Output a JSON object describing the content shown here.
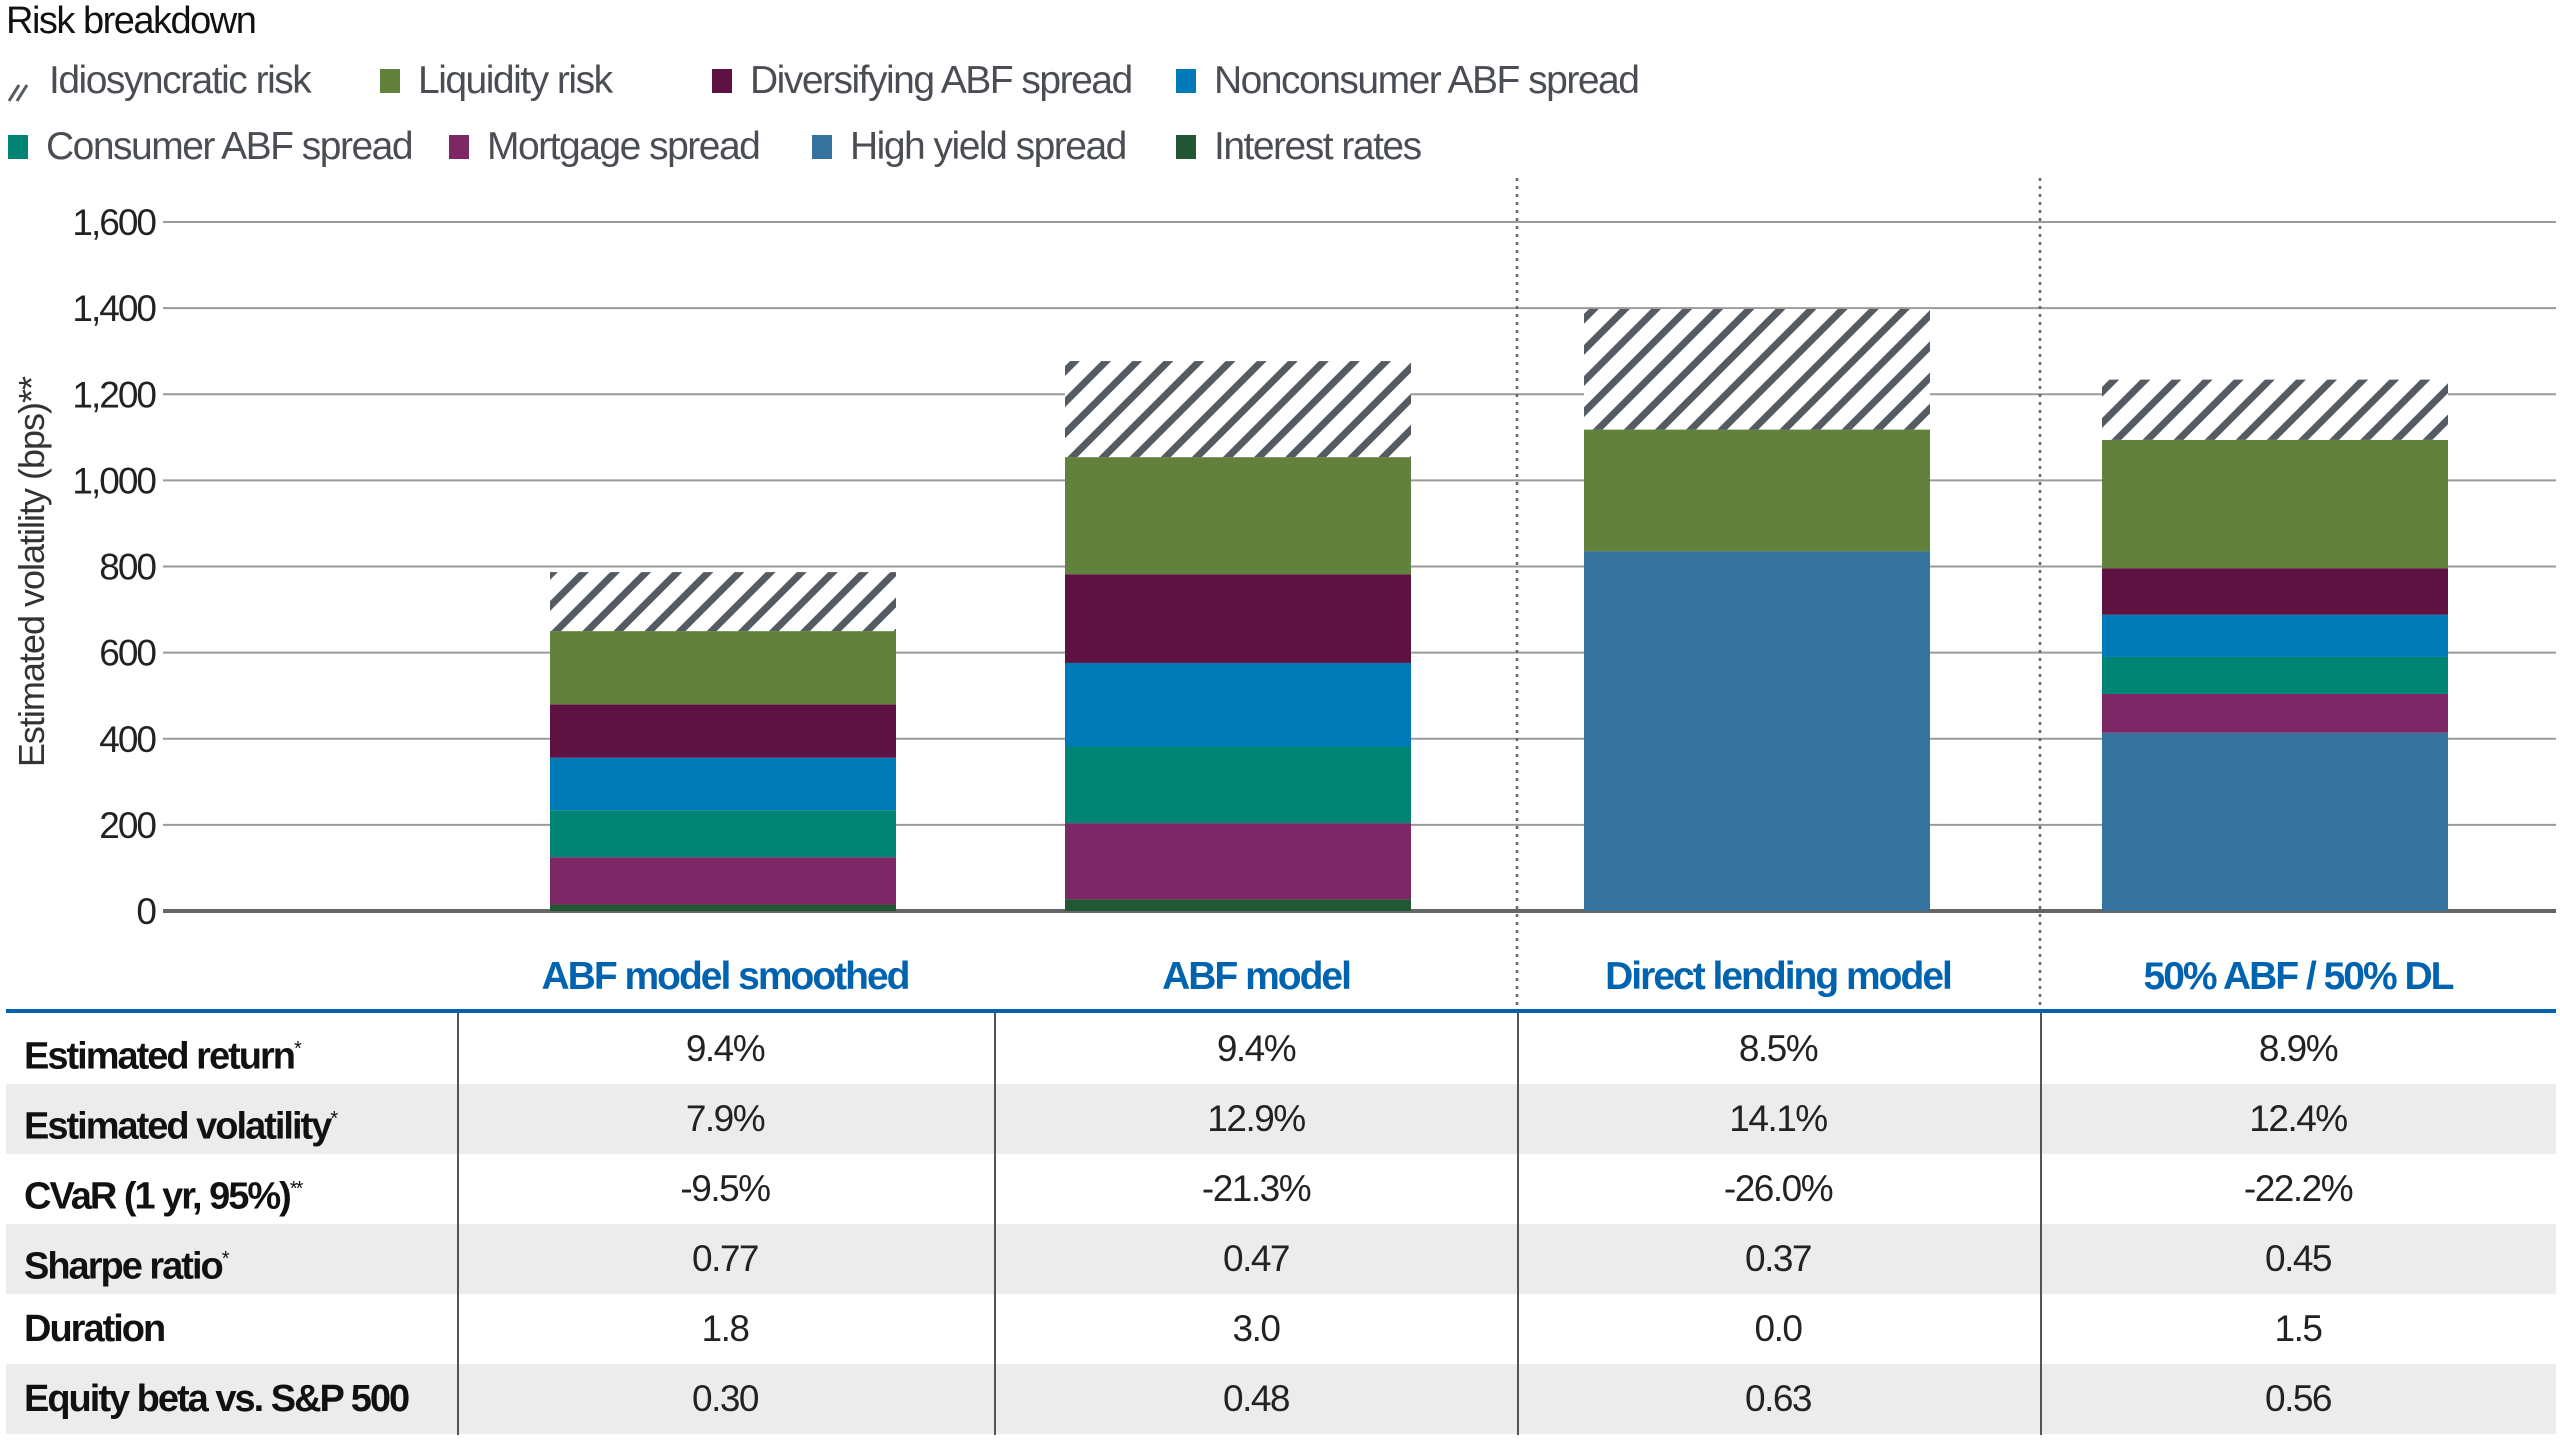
{
  "chart_data": {
    "type": "bar",
    "stacked": true,
    "title": "Risk breakdown",
    "ylabel": "Estimated volatility (bps)**",
    "ylim": [
      0,
      1600
    ],
    "yticks": [
      0,
      200,
      400,
      600,
      800,
      1000,
      1200,
      1400,
      1600
    ],
    "ytick_labels": [
      "0",
      "200",
      "400",
      "600",
      "800",
      "1,000",
      "1,200",
      "1,400",
      "1,600"
    ],
    "grid": true,
    "legend_placement": "top-left",
    "categories": [
      "ABF model smoothed",
      "ABF model",
      "Direct lending model",
      "50% ABF / 50% DL"
    ],
    "series": [
      {
        "name": "Interest rates",
        "color": "#215732",
        "values": [
          15,
          27,
          0,
          0
        ]
      },
      {
        "name": "High yield spread",
        "color": "#36749f",
        "values": [
          0,
          0,
          835,
          414
        ]
      },
      {
        "name": "Mortgage spread",
        "color": "#7d2767",
        "values": [
          110,
          177,
          0,
          90
        ]
      },
      {
        "name": "Consumer ABF spread",
        "color": "#008575",
        "values": [
          109,
          178,
          0,
          86
        ]
      },
      {
        "name": "Nonconsumer ABF spread",
        "color": "#007bba",
        "values": [
          122,
          194,
          0,
          98
        ]
      },
      {
        "name": "Diversifying ABF spread",
        "color": "#5e1242",
        "values": [
          124,
          206,
          0,
          108
        ]
      },
      {
        "name": "Liquidity risk",
        "color": "#62813d",
        "values": [
          170,
          272,
          283,
          298
        ]
      },
      {
        "name": "Idiosyncratic risk",
        "color": "hatch",
        "values": [
          137,
          223,
          280,
          140
        ]
      }
    ]
  },
  "legend": [
    {
      "name": "Idiosyncratic risk",
      "color": "hatch",
      "icon": "hatch-swatch-icon"
    },
    {
      "name": "Liquidity risk",
      "color": "#62813d"
    },
    {
      "name": "Diversifying ABF spread",
      "color": "#5e1242"
    },
    {
      "name": "Nonconsumer ABF spread",
      "color": "#007bba"
    },
    {
      "name": "Consumer ABF spread",
      "color": "#008575"
    },
    {
      "name": "Mortgage spread",
      "color": "#7d2767"
    },
    {
      "name": "High yield spread",
      "color": "#36749f"
    },
    {
      "name": "Interest rates",
      "color": "#215732"
    }
  ],
  "table": {
    "columns": [
      "ABF model smoothed",
      "ABF model",
      "Direct lending model",
      "50% ABF / 50% DL"
    ],
    "header_color": "#0063b0",
    "rows": [
      {
        "label": "Estimated return",
        "mark": "*",
        "values": [
          "9.4%",
          "9.4%",
          "8.5%",
          "8.9%"
        ]
      },
      {
        "label": "Estimated volatility",
        "mark": "*",
        "values": [
          "7.9%",
          "12.9%",
          "14.1%",
          "12.4%"
        ]
      },
      {
        "label": "CVaR (1 yr, 95%)",
        "mark": "**",
        "values": [
          "-9.5%",
          "-21.3%",
          "-26.0%",
          "-22.2%"
        ]
      },
      {
        "label": "Sharpe ratio",
        "mark": "*",
        "values": [
          "0.77",
          "0.47",
          "0.37",
          "0.45"
        ]
      },
      {
        "label": "Duration",
        "mark": "",
        "values": [
          "1.8",
          "3.0",
          "0.0",
          "1.5"
        ]
      },
      {
        "label": "Equity beta vs. S&P 500",
        "mark": "",
        "values": [
          "0.30",
          "0.48",
          "0.63",
          "0.56"
        ]
      }
    ]
  }
}
